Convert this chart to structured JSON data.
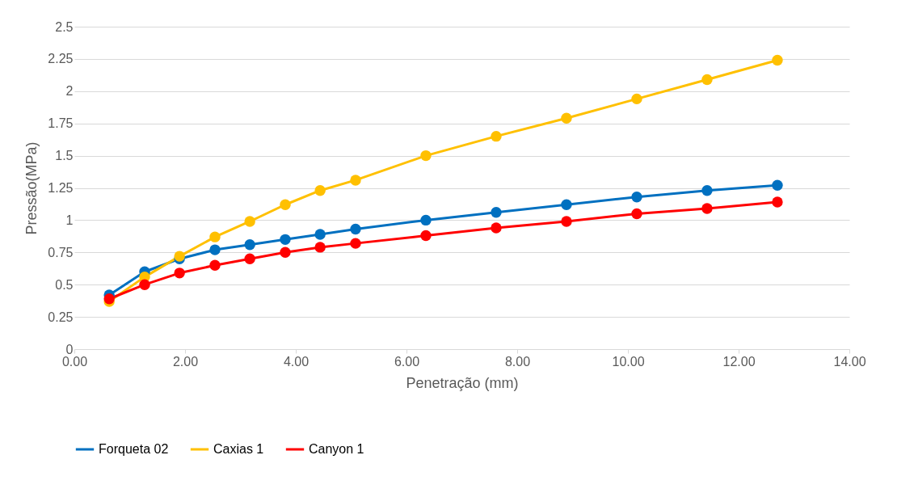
{
  "chart_data": {
    "type": "line",
    "xlabel": "Penetração (mm)",
    "ylabel": "Pressão(MPa)",
    "x": [
      0.63,
      1.27,
      1.9,
      2.54,
      3.17,
      3.81,
      4.44,
      5.08,
      6.35,
      7.62,
      8.89,
      10.16,
      11.43,
      12.7
    ],
    "series": [
      {
        "name": "Forqueta 02",
        "color": "#0070c0",
        "values": [
          0.42,
          0.6,
          0.7,
          0.77,
          0.81,
          0.85,
          0.89,
          0.93,
          1.0,
          1.06,
          1.12,
          1.18,
          1.23,
          1.27
        ]
      },
      {
        "name": "Caxias 1",
        "color": "#ffc000",
        "values": [
          0.37,
          0.56,
          0.72,
          0.87,
          0.99,
          1.12,
          1.23,
          1.31,
          1.5,
          1.65,
          1.79,
          1.94,
          2.09,
          2.24
        ]
      },
      {
        "name": "Canyon 1",
        "color": "#ff0000",
        "values": [
          0.39,
          0.5,
          0.59,
          0.65,
          0.7,
          0.75,
          0.79,
          0.82,
          0.88,
          0.94,
          0.99,
          1.05,
          1.09,
          1.14
        ]
      }
    ],
    "xlim": [
      0,
      14
    ],
    "xticks": [
      {
        "value": 0,
        "label": "0.00"
      },
      {
        "value": 2,
        "label": "2.00"
      },
      {
        "value": 4,
        "label": "4.00"
      },
      {
        "value": 6,
        "label": "6.00"
      },
      {
        "value": 8,
        "label": "8.00"
      },
      {
        "value": 10,
        "label": "10.00"
      },
      {
        "value": 12,
        "label": "12.00"
      },
      {
        "value": 14,
        "label": "14.00"
      }
    ],
    "ylim": [
      0,
      2.5
    ],
    "yticks": [
      0,
      0.25,
      0.5,
      0.75,
      1,
      1.25,
      1.5,
      1.75,
      2,
      2.25,
      2.5
    ],
    "grid": "y",
    "legend": "bottom",
    "marker": "circle",
    "line_style": "solid"
  }
}
